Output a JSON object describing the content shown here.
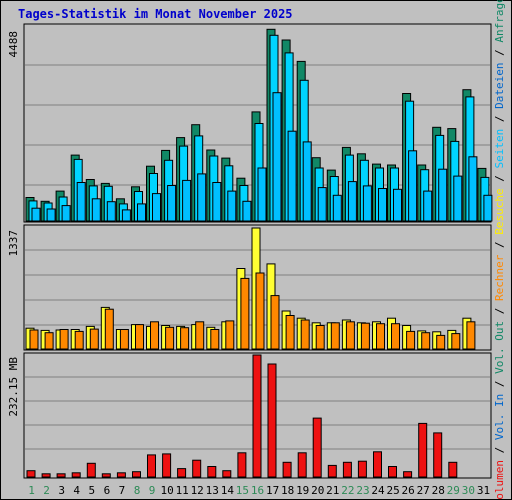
{
  "chart_data": {
    "type": "bar",
    "title": "Tages-Statistik im Monat November 2025",
    "categories": [
      "1",
      "2",
      "3",
      "4",
      "5",
      "6",
      "7",
      "8",
      "9",
      "10",
      "11",
      "12",
      "13",
      "14",
      "15",
      "16",
      "17",
      "18",
      "19",
      "20",
      "21",
      "22",
      "23",
      "24",
      "25",
      "26",
      "27",
      "28",
      "29",
      "30",
      "31"
    ],
    "weekend_days": [
      "1",
      "2",
      "8",
      "9",
      "15",
      "16",
      "22",
      "23",
      "29",
      "30"
    ],
    "colors": {
      "weekday_label": "#000000",
      "weekend_label": "#2e8b57",
      "anfragen": "#118866",
      "dateien": "#00d4ff",
      "seiten": "#00bfff",
      "besuche": "#ffff33",
      "rechner": "#ff8800",
      "volumen": "#ee1111"
    },
    "panels": [
      {
        "id": "top",
        "ymax_label": "4488",
        "ymax": 4488,
        "series": [
          {
            "name": "Anfragen",
            "values": [
              550,
              460,
              700,
              1540,
              970,
              880,
              520,
              800,
              1280,
              1650,
              1950,
              2250,
              1660,
              1470,
              1000,
              2550,
              4480,
              4230,
              3730,
              1480,
              1190,
              1720,
              1570,
              1330,
              1310,
              2980,
              1310,
              2190,
              2160,
              3070,
              1230
            ],
            "values_note": ""
          },
          {
            "name": "Dateien",
            "values": [
              470,
              420,
              560,
              1440,
              820,
              810,
              400,
              690,
              1110,
              1420,
              1750,
              1990,
              1520,
              1290,
              830,
              2280,
              4340,
              3930,
              3290,
              1240,
              1040,
              1540,
              1420,
              1240,
              1240,
              2800,
              1200,
              2000,
              1860,
              2900,
              1020
            ]
          },
          {
            "name": "Seiten",
            "values": [
              300,
              280,
              360,
              900,
              520,
              450,
              260,
              400,
              640,
              830,
              950,
              1100,
              900,
              700,
              460,
              1240,
              3000,
              2100,
              1850,
              780,
              600,
              920,
              820,
              760,
              740,
              1640,
              700,
              1210,
              1050,
              1500,
              600
            ]
          }
        ]
      },
      {
        "id": "middle",
        "ymax_label": "1337",
        "ymax": 1337,
        "series": [
          {
            "name": "Besuche",
            "values": [
              230,
              205,
              210,
              215,
              250,
              460,
              215,
              270,
              250,
              260,
              250,
              270,
              240,
              300,
              890,
              1337,
              940,
              420,
              340,
              290,
              290,
              320,
              290,
              300,
              340,
              260,
              200,
              190,
              205,
              340,
              0
            ]
          },
          {
            "name": "Rechner",
            "values": [
              210,
              180,
              215,
              195,
              220,
              440,
              215,
              270,
              300,
              240,
              235,
              300,
              215,
              310,
              780,
              840,
              590,
              370,
              320,
              260,
              290,
              300,
              285,
              280,
              280,
              195,
              180,
              150,
              170,
              300,
              0
            ]
          }
        ]
      },
      {
        "id": "bottom",
        "ymax_label": "232.15 MB",
        "ymax": 232.15,
        "series": [
          {
            "name": "Volumen",
            "values": [
              12,
              6,
              6,
              8,
              26,
              6,
              8,
              10,
              42,
              44,
              16,
              32,
              20,
              12,
              46,
              232.15,
              215,
              28,
              46,
              112,
              22,
              28,
              30,
              48,
              20,
              10,
              102,
              84,
              28,
              0,
              0
            ]
          }
        ]
      }
    ],
    "right_labels": [
      {
        "text": "Anfragen",
        "color": "#118866"
      },
      {
        "text": " / ",
        "color": "#000000"
      },
      {
        "text": "Dateien",
        "color": "#0066cc"
      },
      {
        "text": " / ",
        "color": "#000000"
      },
      {
        "text": "Seiten",
        "color": "#00bfff"
      },
      {
        "text": " / ",
        "color": "#000000"
      },
      {
        "text": "Besuche",
        "color": "#ffee00"
      },
      {
        "text": " / ",
        "color": "#000000"
      },
      {
        "text": "Rechner",
        "color": "#ff8800"
      },
      {
        "text": " / ",
        "color": "#000000"
      },
      {
        "text": "Vol. Out",
        "color": "#118866"
      },
      {
        "text": " / ",
        "color": "#000000"
      },
      {
        "text": "Vol. In",
        "color": "#0066cc"
      },
      {
        "text": " / ",
        "color": "#000000"
      },
      {
        "text": "Volumen",
        "color": "#ee1111"
      }
    ]
  }
}
